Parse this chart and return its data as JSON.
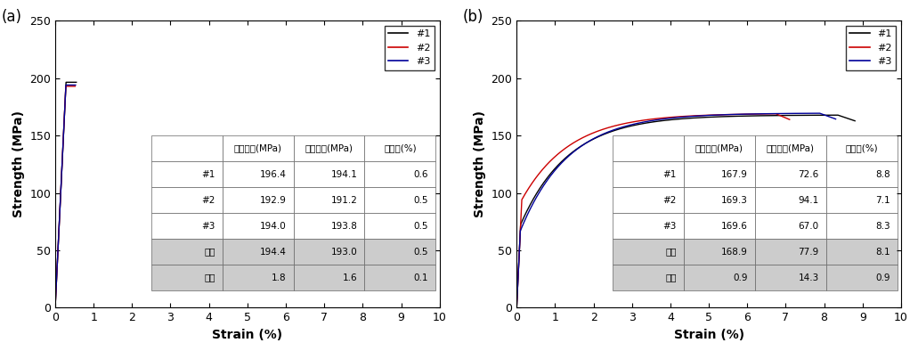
{
  "panel_a_label": "(a)",
  "panel_b_label": "(b)",
  "xlabel": "Strain (%)",
  "ylabel": "Strength (MPa)",
  "xlim": [
    0,
    10
  ],
  "ylim": [
    0,
    250
  ],
  "xticks": [
    0,
    1,
    2,
    3,
    4,
    5,
    6,
    7,
    8,
    9,
    10
  ],
  "yticks": [
    0,
    50,
    100,
    150,
    200,
    250
  ],
  "legend_labels": [
    "#1",
    "#2",
    "#3"
  ],
  "colors_a": [
    "#000000",
    "#cc0000",
    "#000099"
  ],
  "colors_b": [
    "#000000",
    "#cc0000",
    "#000099"
  ],
  "table_a": {
    "headers": [
      "",
      "인장강도(MPa)",
      "항복강도(MPa)",
      "연신율(%)"
    ],
    "rows": [
      [
        "#1",
        "196.4",
        "194.1",
        "0.6"
      ],
      [
        "#2",
        "192.9",
        "191.2",
        "0.5"
      ],
      [
        "#3",
        "194.0",
        "193.8",
        "0.5"
      ],
      [
        "평균",
        "194.4",
        "193.0",
        "0.5"
      ],
      [
        "편차",
        "1.8",
        "1.6",
        "0.1"
      ]
    ],
    "shaded_rows": [
      3,
      4
    ]
  },
  "table_b": {
    "headers": [
      "",
      "인장강도(MPa)",
      "항복강도(MPa)",
      "연신율(%)"
    ],
    "rows": [
      [
        "#1",
        "167.9",
        "72.6",
        "8.8"
      ],
      [
        "#2",
        "169.3",
        "94.1",
        "7.1"
      ],
      [
        "#3",
        "169.6",
        "67.0",
        "8.3"
      ],
      [
        "평균",
        "168.9",
        "77.9",
        "8.1"
      ],
      [
        "편차",
        "0.9",
        "14.3",
        "0.9"
      ]
    ],
    "shaded_rows": [
      3,
      4
    ]
  }
}
